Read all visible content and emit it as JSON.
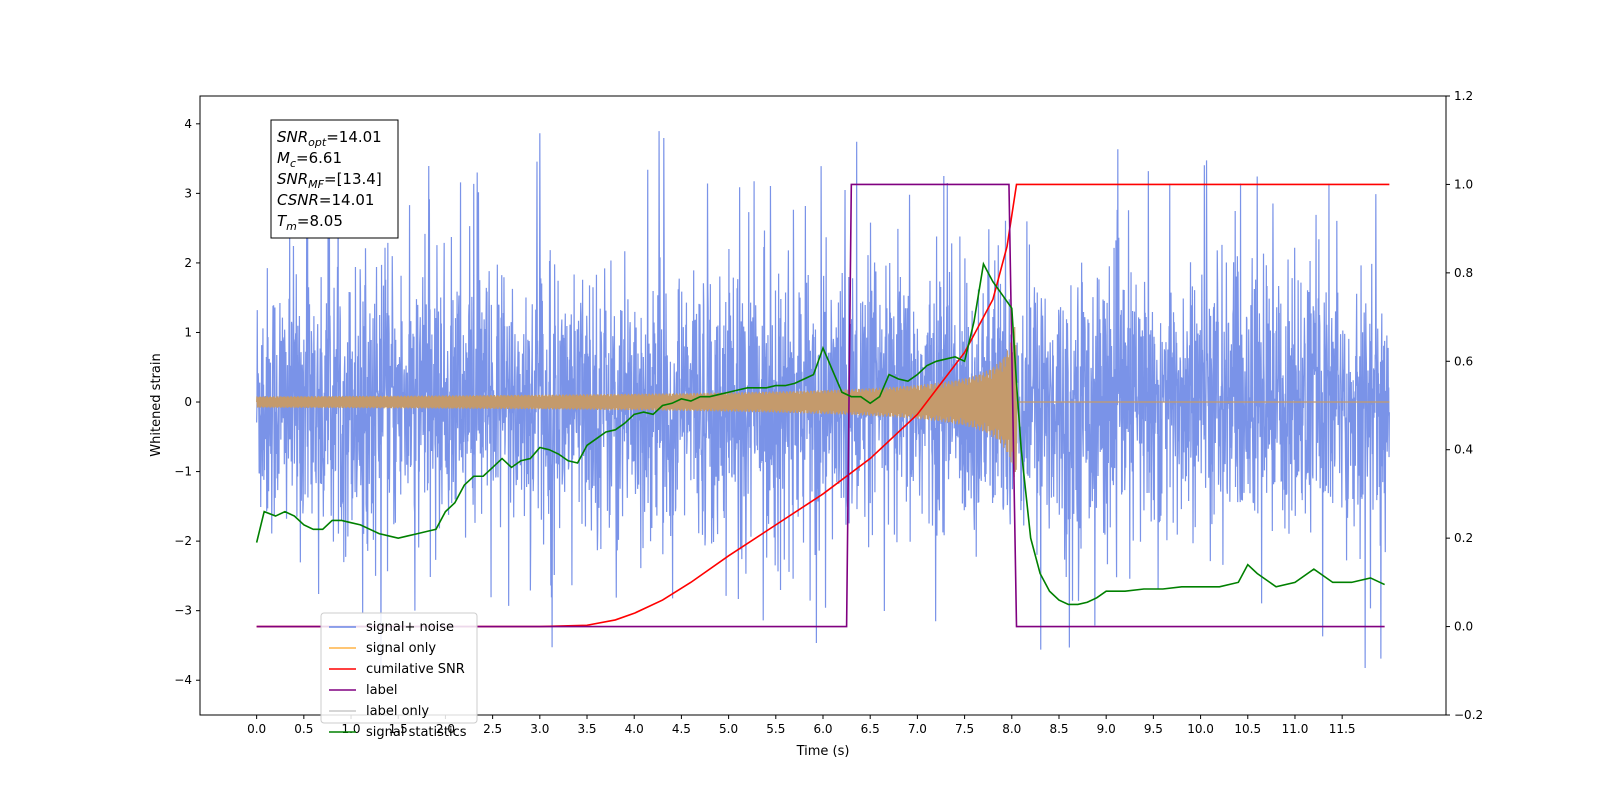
{
  "chart_data": {
    "type": "line",
    "xlabel": "Time (s)",
    "ylabel": "Whitened strain",
    "xlim": [
      -0.6,
      12.6
    ],
    "ylim_left": [
      -4.5,
      4.4
    ],
    "ylim_right": [
      -0.2,
      1.2
    ],
    "grid": false,
    "legend_placement": "lower-left",
    "x_tick_labels": [
      "0.0",
      "0.5",
      "1.0",
      "1.5",
      "2.0",
      "2.5",
      "3.0",
      "3.5",
      "4.0",
      "4.5",
      "5.0",
      "5.5",
      "6.0",
      "6.5",
      "7.0",
      "7.5",
      "8.0",
      "8.5",
      "9.0",
      "9.5",
      "10.0",
      "10.5",
      "11.0",
      "11.5"
    ],
    "y_left_tick_labels": [
      "4",
      "3",
      "2",
      "1",
      "0",
      "−1",
      "−2",
      "−3",
      "−4"
    ],
    "y_right_tick_labels": [
      "1.2",
      "1.0",
      "0.8",
      "0.6",
      "0.4",
      "0.2",
      "0.0",
      "−0.2"
    ],
    "annotation": [
      {
        "sym": "SNR",
        "sub": "opt",
        "value": "=14.01"
      },
      {
        "sym": "M",
        "sub": "c",
        "value": "=6.61"
      },
      {
        "sym": "SNR",
        "sub": "MF",
        "value": "=[13.4]"
      },
      {
        "sym": "CSNR",
        "sub": "",
        "value": "=14.01"
      },
      {
        "sym": "T",
        "sub": "m",
        "value": "=8.05"
      }
    ],
    "legend": [
      {
        "label": "signal+ noise",
        "color": "#6b87e6"
      },
      {
        "label": "signal only",
        "color": "#ffb447"
      },
      {
        "label": "cumilative SNR",
        "color": "#ff0000"
      },
      {
        "label": "label",
        "color": "#800080"
      },
      {
        "label": "label only",
        "color": "#c8c8c8"
      },
      {
        "label": "signal statistics",
        "color": "#008000"
      }
    ],
    "series": [
      {
        "name": "signal+ noise",
        "axis": "left",
        "color": "#6b87e6",
        "description_points": {
          "x_range": [
            0.0,
            12.0
          ],
          "envelope_low": -2.2,
          "envelope_high": 2.2,
          "spike_max": 4.0,
          "spike_min": -4.1
        }
      },
      {
        "name": "signal only",
        "axis": "left",
        "color": "#c49a6c",
        "chirp": {
          "t_start": 0.0,
          "t_merge": 8.05,
          "t_end": 12.0,
          "peak_amplitude": 1.0
        }
      },
      {
        "name": "cumilative SNR",
        "axis": "right",
        "color": "#ff0000",
        "x": [
          0.0,
          3.0,
          3.5,
          3.8,
          4.0,
          4.3,
          4.6,
          5.0,
          5.5,
          6.0,
          6.5,
          7.0,
          7.5,
          7.8,
          7.95,
          8.05,
          8.1,
          12.0
        ],
        "y": [
          0.0,
          0.0,
          0.003,
          0.015,
          0.03,
          0.06,
          0.1,
          0.16,
          0.23,
          0.3,
          0.38,
          0.48,
          0.62,
          0.74,
          0.86,
          1.0,
          1.0,
          1.0
        ]
      },
      {
        "name": "label",
        "axis": "right",
        "color": "#800080",
        "x": [
          0.0,
          6.25,
          6.3,
          7.97,
          8.05,
          11.95
        ],
        "y": [
          0.0,
          0.0,
          1.0,
          1.0,
          0.0,
          0.0
        ]
      },
      {
        "name": "signal statistics",
        "axis": "right",
        "color": "#008000",
        "x": [
          0.0,
          0.08,
          0.2,
          0.3,
          0.4,
          0.5,
          0.6,
          0.7,
          0.8,
          0.9,
          1.0,
          1.1,
          1.2,
          1.3,
          1.4,
          1.5,
          1.6,
          1.7,
          1.8,
          1.9,
          2.0,
          2.1,
          2.2,
          2.3,
          2.4,
          2.5,
          2.6,
          2.7,
          2.8,
          2.9,
          3.0,
          3.1,
          3.2,
          3.3,
          3.4,
          3.5,
          3.6,
          3.7,
          3.8,
          3.9,
          4.0,
          4.1,
          4.2,
          4.3,
          4.4,
          4.5,
          4.6,
          4.7,
          4.8,
          4.9,
          5.0,
          5.1,
          5.2,
          5.3,
          5.4,
          5.5,
          5.6,
          5.7,
          5.8,
          5.9,
          6.0,
          6.1,
          6.2,
          6.3,
          6.4,
          6.5,
          6.6,
          6.7,
          6.8,
          6.9,
          7.0,
          7.1,
          7.2,
          7.3,
          7.4,
          7.5,
          7.6,
          7.7,
          7.8,
          7.9,
          8.0,
          8.05,
          8.1,
          8.2,
          8.3,
          8.4,
          8.5,
          8.6,
          8.7,
          8.8,
          8.9,
          9.0,
          9.2,
          9.4,
          9.6,
          9.8,
          10.0,
          10.2,
          10.4,
          10.5,
          10.6,
          10.8,
          11.0,
          11.2,
          11.4,
          11.6,
          11.8,
          11.95
        ],
        "y": [
          0.19,
          0.26,
          0.25,
          0.26,
          0.25,
          0.23,
          0.22,
          0.22,
          0.24,
          0.24,
          0.235,
          0.23,
          0.22,
          0.21,
          0.205,
          0.2,
          0.205,
          0.21,
          0.215,
          0.22,
          0.26,
          0.28,
          0.32,
          0.34,
          0.34,
          0.36,
          0.38,
          0.36,
          0.375,
          0.38,
          0.405,
          0.4,
          0.39,
          0.375,
          0.37,
          0.41,
          0.425,
          0.44,
          0.445,
          0.46,
          0.48,
          0.485,
          0.48,
          0.5,
          0.505,
          0.515,
          0.51,
          0.52,
          0.52,
          0.525,
          0.53,
          0.535,
          0.54,
          0.54,
          0.54,
          0.545,
          0.545,
          0.55,
          0.56,
          0.57,
          0.63,
          0.58,
          0.53,
          0.52,
          0.52,
          0.505,
          0.52,
          0.57,
          0.56,
          0.555,
          0.57,
          0.59,
          0.6,
          0.605,
          0.61,
          0.6,
          0.69,
          0.82,
          0.78,
          0.75,
          0.72,
          0.55,
          0.4,
          0.2,
          0.12,
          0.08,
          0.06,
          0.05,
          0.05,
          0.055,
          0.065,
          0.08,
          0.08,
          0.085,
          0.085,
          0.09,
          0.09,
          0.09,
          0.1,
          0.14,
          0.12,
          0.09,
          0.1,
          0.13,
          0.1,
          0.1,
          0.11,
          0.095
        ]
      }
    ]
  }
}
